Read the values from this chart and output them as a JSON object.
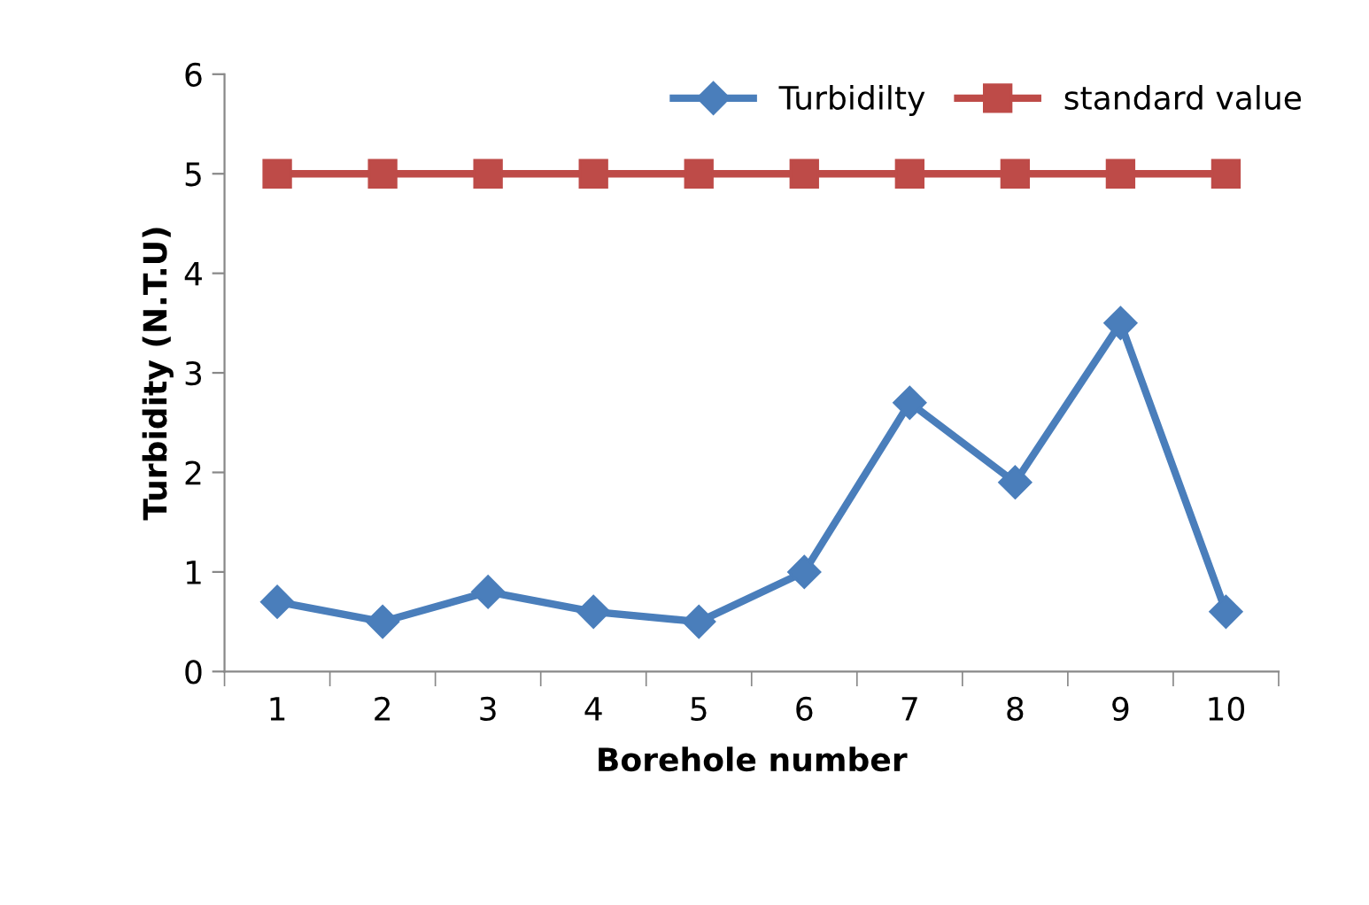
{
  "chart_data": {
    "type": "line",
    "xlabel": "Borehole number",
    "ylabel": "Turbidity (N.T.U)",
    "categories": [
      "1",
      "2",
      "3",
      "4",
      "5",
      "6",
      "7",
      "8",
      "9",
      "10"
    ],
    "series": [
      {
        "name": "Turbidilty",
        "color": "#4a7ebb",
        "values": [
          0.7,
          0.5,
          0.8,
          0.6,
          0.5,
          1.0,
          2.7,
          1.9,
          3.5,
          0.6
        ],
        "marker": "diamond"
      },
      {
        "name": "standard value",
        "color": "#be4b48",
        "values": [
          5,
          5,
          5,
          5,
          5,
          5,
          5,
          5,
          5,
          5
        ],
        "marker": "square"
      }
    ],
    "ylim": [
      0,
      6
    ],
    "yticks": [
      0,
      1,
      2,
      3,
      4,
      5,
      6
    ],
    "grid": false,
    "legend": "top right",
    "line_style": "solid"
  }
}
